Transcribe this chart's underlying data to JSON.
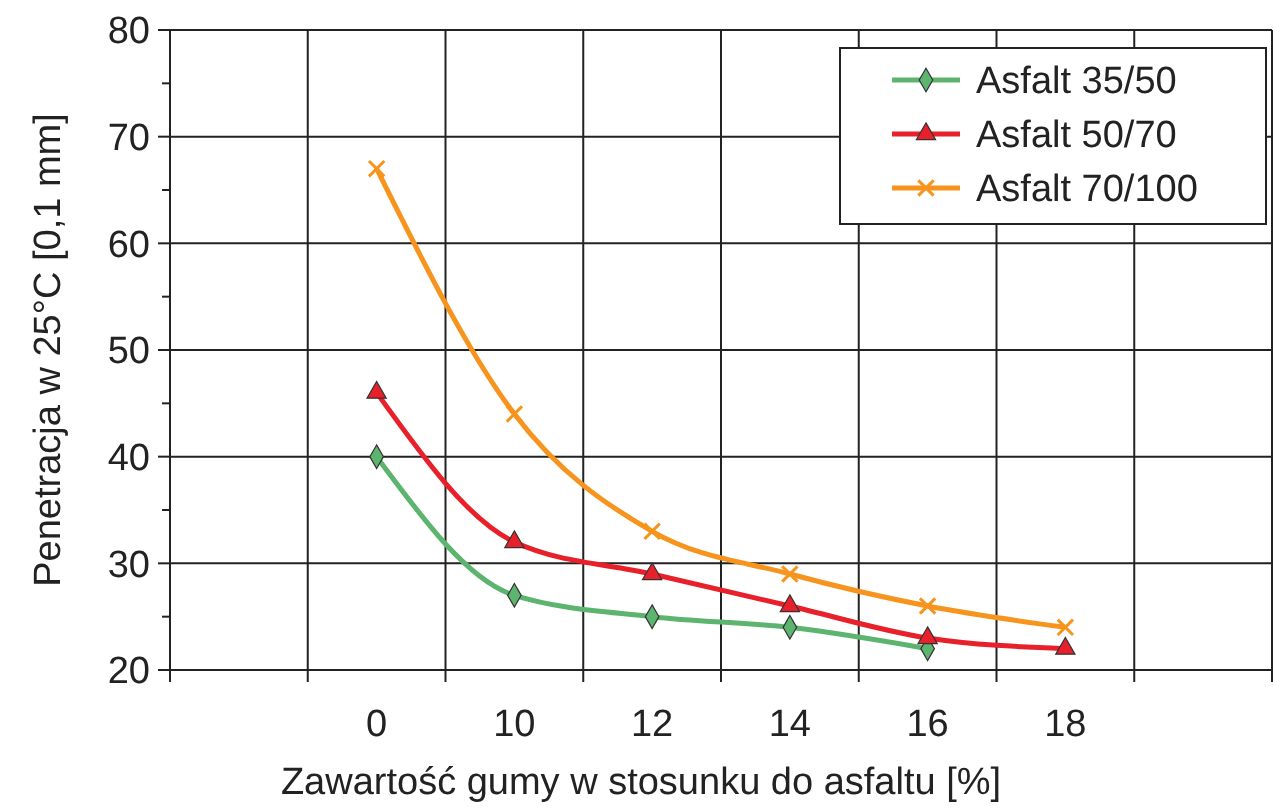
{
  "chart_data": {
    "type": "line",
    "xlabel": "Zawartość gumy w stosunku do asfaltu [%]",
    "ylabel": "Penetracja w 25°C [0,1 mm]",
    "categories": [
      null,
      "0",
      "10",
      "12",
      "14",
      "16",
      "18",
      null
    ],
    "series": [
      {
        "name": "Asfalt 35/50",
        "color": "#5cb46e",
        "marker": "diamond",
        "values": [
          null,
          40,
          27,
          25,
          24,
          22,
          null,
          null
        ]
      },
      {
        "name": "Asfalt 50/70",
        "color": "#e8202a",
        "marker": "triangle",
        "values": [
          null,
          46,
          32,
          29,
          26,
          23,
          22,
          null
        ]
      },
      {
        "name": "Asfalt 70/100",
        "color": "#f7941d",
        "marker": "cross",
        "values": [
          null,
          67,
          44,
          33,
          29,
          26,
          24,
          null
        ]
      }
    ],
    "ylim": [
      20,
      80
    ],
    "yticks": [
      20,
      {
        "value": 25,
        "label": null
      },
      30,
      {
        "value": 35,
        "label": null
      },
      40,
      {
        "value": 45,
        "label": null
      },
      50,
      {
        "value": 55,
        "label": null
      },
      60,
      {
        "value": 65,
        "label": null
      },
      70,
      {
        "value": 75,
        "label": null
      },
      80
    ],
    "grid": true,
    "legend": "top right"
  }
}
